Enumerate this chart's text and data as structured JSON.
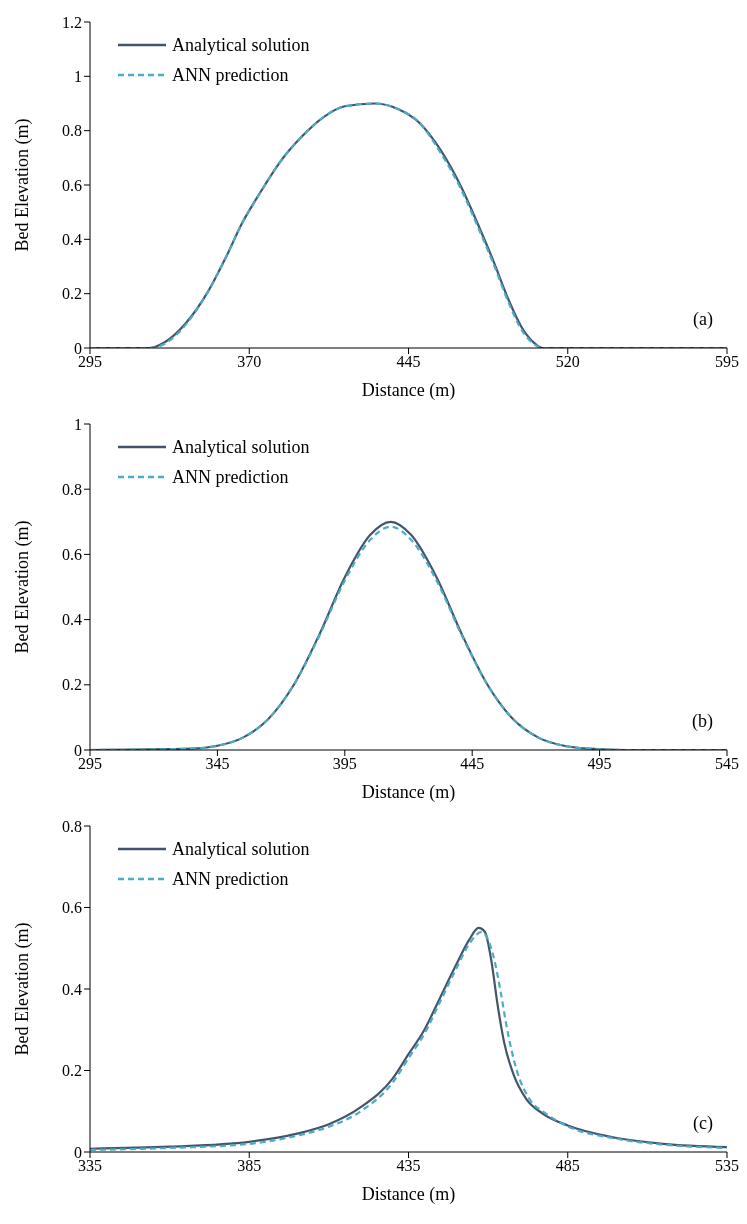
{
  "chart_data": [
    {
      "type": "line",
      "xlabel": "Distance (m)",
      "ylabel": "Bed Elevation (m)",
      "annotations": [
        "(a)"
      ],
      "xlim": [
        295,
        595
      ],
      "xticks": [
        295,
        370,
        445,
        520,
        595
      ],
      "ylim": [
        0,
        1.2
      ],
      "yticks": [
        0,
        0.2,
        0.4,
        0.6,
        0.8,
        1,
        1.2
      ],
      "legend": "top left",
      "series": [
        {
          "name": "Analytical solution",
          "color": "#44546a",
          "line_style": "solid",
          "x": [
            295,
            315,
            323,
            330,
            340,
            350,
            360,
            366,
            375,
            385,
            395,
            405,
            415,
            429,
            440,
            450,
            460,
            470,
            478,
            485,
            492,
            498,
            504,
            508,
            520,
            595
          ],
          "values": [
            0,
            0,
            0,
            0.02,
            0.09,
            0.2,
            0.35,
            0.45,
            0.57,
            0.69,
            0.78,
            0.85,
            0.89,
            0.9,
            0.88,
            0.83,
            0.73,
            0.59,
            0.45,
            0.32,
            0.18,
            0.08,
            0.02,
            0,
            0,
            0
          ]
        },
        {
          "name": "ANN prediction",
          "color": "#4bacc6",
          "line_style": "dashed",
          "x": [
            295,
            315,
            323,
            330,
            340,
            350,
            360,
            366,
            375,
            385,
            395,
            405,
            415,
            429,
            440,
            450,
            460,
            470,
            478,
            485,
            492,
            498,
            504,
            508,
            520,
            595
          ],
          "values": [
            0,
            0,
            0,
            0.015,
            0.085,
            0.2,
            0.35,
            0.45,
            0.57,
            0.69,
            0.78,
            0.85,
            0.89,
            0.9,
            0.88,
            0.83,
            0.72,
            0.58,
            0.44,
            0.31,
            0.17,
            0.07,
            0.015,
            0,
            0,
            0
          ]
        }
      ]
    },
    {
      "type": "line",
      "xlabel": "Distance (m)",
      "ylabel": "Bed Elevation (m)",
      "annotations": [
        "(b)"
      ],
      "xlim": [
        295,
        545
      ],
      "xticks": [
        295,
        345,
        395,
        445,
        495,
        545
      ],
      "ylim": [
        0,
        1
      ],
      "yticks": [
        0,
        0.2,
        0.4,
        0.6,
        0.8,
        1
      ],
      "legend": "top left",
      "series": [
        {
          "name": "Analytical solution",
          "color": "#44546a",
          "line_style": "solid",
          "x": [
            295,
            335,
            345,
            355,
            365,
            375,
            385,
            395,
            405,
            413,
            421,
            431,
            441,
            451,
            461,
            471,
            481,
            491,
            505,
            545
          ],
          "values": [
            0,
            0.004,
            0.013,
            0.038,
            0.095,
            0.2,
            0.354,
            0.53,
            0.66,
            0.7,
            0.66,
            0.53,
            0.354,
            0.2,
            0.095,
            0.038,
            0.013,
            0.004,
            0,
            0
          ]
        },
        {
          "name": "ANN prediction",
          "color": "#4bacc6",
          "line_style": "dashed",
          "x": [
            295,
            335,
            345,
            355,
            365,
            375,
            385,
            395,
            405,
            413,
            421,
            431,
            441,
            451,
            461,
            471,
            481,
            491,
            505,
            545
          ],
          "values": [
            0,
            0.004,
            0.013,
            0.038,
            0.095,
            0.2,
            0.35,
            0.52,
            0.645,
            0.685,
            0.645,
            0.52,
            0.35,
            0.2,
            0.095,
            0.038,
            0.013,
            0.004,
            0,
            0
          ]
        }
      ]
    },
    {
      "type": "line",
      "xlabel": "Distance (m)",
      "ylabel": "Bed Elevation (m)",
      "annotations": [
        "(c)"
      ],
      "xlim": [
        335,
        535
      ],
      "xticks": [
        335,
        385,
        435,
        485,
        535
      ],
      "ylim": [
        0,
        0.8
      ],
      "yticks": [
        0,
        0.2,
        0.4,
        0.6,
        0.8
      ],
      "legend": "top left",
      "series": [
        {
          "name": "Analytical solution",
          "color": "#44546a",
          "line_style": "solid",
          "x": [
            335,
            360,
            385,
            400,
            410,
            420,
            430,
            435,
            440,
            445,
            450,
            454,
            457,
            459,
            461,
            463,
            465,
            468,
            472,
            477,
            485,
            500,
            515,
            535
          ],
          "values": [
            0.008,
            0.013,
            0.025,
            0.045,
            0.068,
            0.11,
            0.18,
            0.24,
            0.3,
            0.38,
            0.46,
            0.52,
            0.55,
            0.54,
            0.47,
            0.36,
            0.27,
            0.19,
            0.13,
            0.095,
            0.065,
            0.035,
            0.02,
            0.012
          ]
        },
        {
          "name": "ANN prediction",
          "color": "#4bacc6",
          "line_style": "dashed",
          "x": [
            335,
            360,
            385,
            400,
            410,
            420,
            430,
            435,
            440,
            445,
            450,
            454,
            458,
            460,
            462,
            464,
            466,
            469,
            473,
            478,
            485,
            500,
            515,
            535
          ],
          "values": [
            0.005,
            0.01,
            0.02,
            0.04,
            0.062,
            0.1,
            0.17,
            0.23,
            0.29,
            0.37,
            0.45,
            0.51,
            0.54,
            0.52,
            0.47,
            0.39,
            0.3,
            0.2,
            0.13,
            0.095,
            0.063,
            0.033,
            0.018,
            0.01
          ]
        }
      ]
    }
  ]
}
